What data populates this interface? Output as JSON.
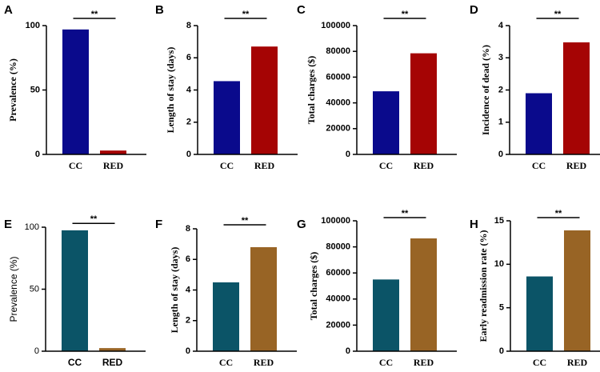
{
  "chart_data": [
    {
      "type": "bar",
      "panel": "A",
      "ylabel": "Prevalence (%)",
      "categories": [
        "CC",
        "RED"
      ],
      "values": [
        97,
        3
      ],
      "colors": [
        "#0a0a8c",
        "#a50404"
      ],
      "ylim": [
        0,
        100
      ],
      "yticks": [
        "0",
        "50",
        "100"
      ],
      "significance": "**",
      "style": "bold-serif"
    },
    {
      "type": "bar",
      "panel": "B",
      "ylabel": "Length of stay (days)",
      "categories": [
        "CC",
        "RED"
      ],
      "values": [
        4.55,
        6.7
      ],
      "colors": [
        "#0a0a8c",
        "#a50404"
      ],
      "ylim": [
        0,
        8
      ],
      "yticks": [
        "0",
        "2",
        "4",
        "6",
        "8"
      ],
      "significance": "**",
      "style": "bold-serif"
    },
    {
      "type": "bar",
      "panel": "C",
      "ylabel": "Total charges ($)",
      "categories": [
        "CC",
        "RED"
      ],
      "values": [
        49000,
        78500
      ],
      "colors": [
        "#0a0a8c",
        "#a50404"
      ],
      "ylim": [
        0,
        100000
      ],
      "yticks": [
        "0",
        "20000",
        "40000",
        "60000",
        "80000",
        "100000"
      ],
      "significance": "**",
      "style": "bold-serif"
    },
    {
      "type": "bar",
      "panel": "D",
      "ylabel": "Incidence of dead (%)",
      "categories": [
        "CC",
        "RED"
      ],
      "values": [
        1.9,
        3.48
      ],
      "colors": [
        "#0a0a8c",
        "#a50404"
      ],
      "ylim": [
        0,
        4
      ],
      "yticks": [
        "0",
        "1",
        "2",
        "3",
        "4"
      ],
      "significance": "**",
      "style": "bold-serif"
    },
    {
      "type": "bar",
      "panel": "E",
      "ylabel": "Prevalence (%)",
      "categories": [
        "CC",
        "RED"
      ],
      "values": [
        97.5,
        2.5
      ],
      "colors": [
        "#0b5467",
        "#986425"
      ],
      "ylim": [
        0,
        100
      ],
      "yticks": [
        "0",
        "50",
        "100"
      ],
      "significance": "**",
      "style": "plain-sans"
    },
    {
      "type": "bar",
      "panel": "F",
      "ylabel": "Length of stay (days)",
      "categories": [
        "CC",
        "RED"
      ],
      "values": [
        4.5,
        6.8
      ],
      "colors": [
        "#0b5467",
        "#986425"
      ],
      "ylim": [
        0,
        8
      ],
      "yticks": [
        "0",
        "2",
        "4",
        "6",
        "8"
      ],
      "significance": "**",
      "style": "bold-serif"
    },
    {
      "type": "bar",
      "panel": "G",
      "ylabel": "Total charges ($)",
      "categories": [
        "CC",
        "RED"
      ],
      "values": [
        55000,
        86500
      ],
      "colors": [
        "#0b5467",
        "#986425"
      ],
      "ylim": [
        0,
        100000
      ],
      "yticks": [
        "0",
        "20000",
        "40000",
        "60000",
        "80000",
        "100000"
      ],
      "significance": "**",
      "style": "bold-serif"
    },
    {
      "type": "bar",
      "panel": "H",
      "ylabel": "Early readmission rate (%)",
      "categories": [
        "CC",
        "RED"
      ],
      "values": [
        8.6,
        13.9
      ],
      "colors": [
        "#0b5467",
        "#986425"
      ],
      "ylim": [
        0,
        15
      ],
      "yticks": [
        "0",
        "5",
        "10",
        "15"
      ],
      "significance": "**",
      "style": "bold-serif"
    }
  ]
}
